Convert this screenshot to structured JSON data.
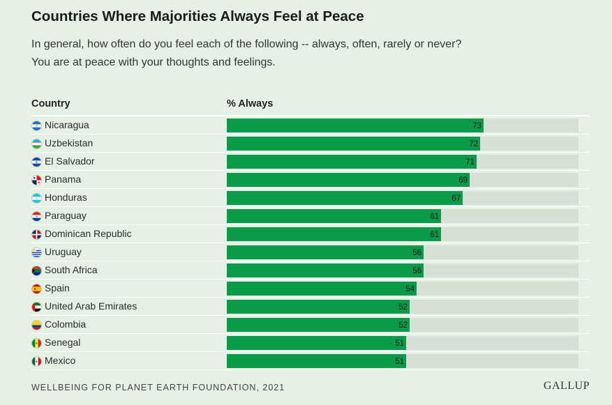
{
  "title": "Countries Where Majorities Always Feel at Peace",
  "subtitle_line1": "In general, how often do you feel each of the following -- always, often, rarely or never?",
  "subtitle_line2": "You are at peace with your thoughts and feelings.",
  "columns": {
    "country": "Country",
    "value": "% Always"
  },
  "footer": "WELLBEING FOR PLANET EARTH FOUNDATION, 2021",
  "logo": "GALLUP",
  "colors": {
    "background": "#e5f1e4",
    "bar": "#0a9a49",
    "track": "#d3e0d2"
  },
  "chart_data": {
    "type": "bar",
    "orientation": "horizontal",
    "xlim": [
      0,
      100
    ],
    "categories": [
      "Nicaragua",
      "Uzbekistan",
      "El Salvador",
      "Panama",
      "Honduras",
      "Paraguay",
      "Dominican Republic",
      "Uruguay",
      "South Africa",
      "Spain",
      "United Arab Emirates",
      "Colombia",
      "Senegal",
      "Mexico"
    ],
    "values": [
      73,
      72,
      71,
      69,
      67,
      61,
      61,
      56,
      56,
      54,
      52,
      52,
      51,
      51
    ],
    "flags": [
      "nicaragua-flag-icon",
      "uzbekistan-flag-icon",
      "el-salvador-flag-icon",
      "panama-flag-icon",
      "honduras-flag-icon",
      "paraguay-flag-icon",
      "dominican-republic-flag-icon",
      "uruguay-flag-icon",
      "south-africa-flag-icon",
      "spain-flag-icon",
      "uae-flag-icon",
      "colombia-flag-icon",
      "senegal-flag-icon",
      "mexico-flag-icon"
    ]
  }
}
